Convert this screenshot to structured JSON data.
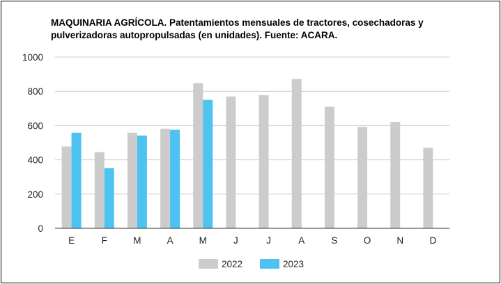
{
  "chart_data": {
    "type": "bar",
    "title": "MAQUINARIA AGRÍCOLA. Patentamientos mensuales de tractores, cosechadoras y pulverizadoras autopropulsadas (en unidades). Fuente: ACARA.",
    "categories": [
      "E",
      "F",
      "M",
      "A",
      "M",
      "J",
      "J",
      "A",
      "S",
      "O",
      "N",
      "D"
    ],
    "series": [
      {
        "name": "2022",
        "color": "#cccccc",
        "values": [
          478,
          445,
          558,
          582,
          848,
          770,
          778,
          872,
          710,
          592,
          622,
          470
        ]
      },
      {
        "name": "2023",
        "color": "#4dc3f2",
        "values": [
          558,
          352,
          542,
          575,
          750,
          null,
          null,
          null,
          null,
          null,
          null,
          null
        ]
      }
    ],
    "ylim": [
      0,
      1000
    ],
    "yticks": [
      0,
      200,
      400,
      600,
      800,
      1000
    ],
    "grid": true,
    "legend_position": "bottom"
  }
}
